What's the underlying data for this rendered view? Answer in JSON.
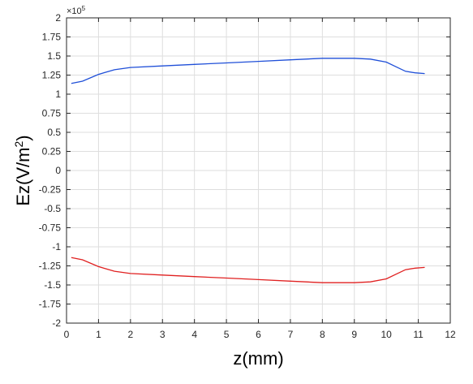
{
  "chart_data": {
    "type": "line",
    "title": "",
    "xlabel": "z(mm)",
    "ylabel": "Ez(V/m²)",
    "ylabel_base": "Ez(V/m",
    "ylabel_sup": "2",
    "ylabel_tail": ")",
    "y_exponent_prefix": "×10",
    "y_exponent_power": "5",
    "y_multiplier": 100000,
    "xlim": [
      0,
      12
    ],
    "ylim": [
      -2,
      2
    ],
    "grid": true,
    "x_ticks": [
      0,
      1,
      2,
      3,
      4,
      5,
      6,
      7,
      8,
      9,
      10,
      11,
      12
    ],
    "x_tick_labels": [
      "0",
      "1",
      "2",
      "3",
      "4",
      "5",
      "6",
      "7",
      "8",
      "9",
      "10",
      "11",
      "12"
    ],
    "y_ticks": [
      2,
      1.75,
      1.5,
      1.25,
      1,
      0.75,
      0.5,
      0.25,
      0,
      -0.25,
      -0.5,
      -0.75,
      -1,
      -1.25,
      -1.5,
      -1.75,
      -2
    ],
    "y_tick_labels": [
      "2",
      "1.75",
      "1.5",
      "1.25",
      "1",
      "0.75",
      "0.5",
      "0.25",
      "0",
      "-0.25",
      "-0.5",
      "-0.75",
      "-1",
      "-1.25",
      "-1.5",
      "-1.75",
      "-2"
    ],
    "series": [
      {
        "color": "#1f4fd8",
        "x": [
          0.15,
          0.5,
          1.0,
          1.5,
          2.0,
          3.0,
          4.0,
          5.0,
          6.0,
          7.0,
          8.0,
          9.0,
          9.5,
          10.0,
          10.3,
          10.6,
          10.9,
          11.2
        ],
        "y": [
          1.14,
          1.17,
          1.26,
          1.32,
          1.35,
          1.37,
          1.39,
          1.41,
          1.43,
          1.45,
          1.47,
          1.47,
          1.46,
          1.42,
          1.36,
          1.3,
          1.28,
          1.27
        ]
      },
      {
        "color": "#e02020",
        "x": [
          0.15,
          0.5,
          1.0,
          1.5,
          2.0,
          3.0,
          4.0,
          5.0,
          6.0,
          7.0,
          8.0,
          9.0,
          9.5,
          10.0,
          10.3,
          10.6,
          10.9,
          11.2
        ],
        "y": [
          -1.14,
          -1.17,
          -1.26,
          -1.32,
          -1.35,
          -1.37,
          -1.39,
          -1.41,
          -1.43,
          -1.45,
          -1.47,
          -1.47,
          -1.46,
          -1.42,
          -1.36,
          -1.3,
          -1.28,
          -1.27
        ]
      }
    ]
  }
}
